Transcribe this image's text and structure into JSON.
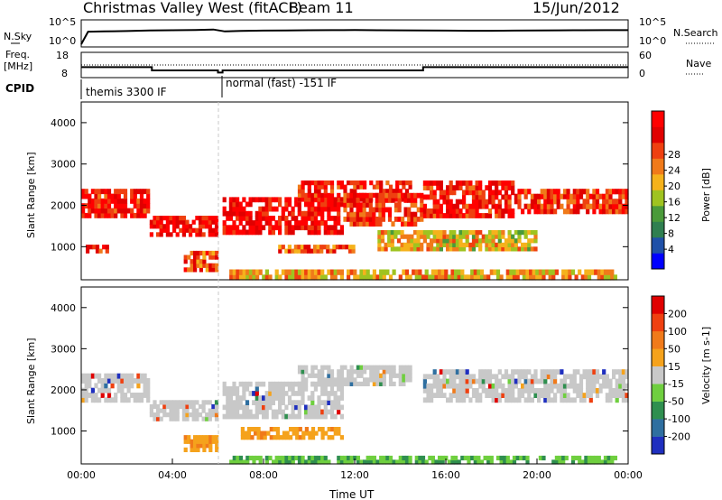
{
  "header": {
    "title": "Christmas Valley West (fitACF)",
    "beam": "Beam 11",
    "date": "15/Jun/2012"
  },
  "left_labels": {
    "nsky": "N.Sky",
    "freq": "Freq.",
    "freq_unit": "[MHz]",
    "cpid": "CPID"
  },
  "right_labels": {
    "nsearch": "N.Search",
    "nave": "Nave"
  },
  "cpid_labels": [
    "themis 3300 IF",
    "normal (fast) -151 IF"
  ],
  "colors": {
    "trace": "#000000",
    "gap_line": "#c8c8c8",
    "ground_scatter": "#b8b8b8"
  },
  "chart_data": [
    {
      "type": "line",
      "panel": "noise",
      "ylabel_left": "N.Sky",
      "ylabel_right": "N.Search",
      "left_ticks": [
        "10^5",
        "10^0"
      ],
      "right_ticks": [
        "10^5",
        "10^0"
      ],
      "yscale": "log",
      "series": [
        {
          "name": "N.Sky",
          "x": [
            0.0,
            0.3,
            1,
            2,
            3,
            4,
            5,
            5.8,
            6.3,
            7,
            8,
            9,
            10,
            11,
            12,
            13,
            14,
            15,
            16,
            17,
            18,
            19,
            20,
            21,
            22,
            23,
            24
          ],
          "y": [
            1,
            800,
            900,
            1100,
            1500,
            1700,
            2000,
            2500,
            900,
            1200,
            1400,
            1500,
            1700,
            1800,
            1900,
            1700,
            1600,
            1500,
            1400,
            1300,
            1300,
            1400,
            1500,
            1600,
            1700,
            1800,
            1800
          ]
        }
      ]
    },
    {
      "type": "line",
      "panel": "frequency",
      "ylabel_left": "Freq. [MHz]",
      "ylabel_right": "Nave",
      "left_ticks": [
        "18",
        "8"
      ],
      "right_ticks": [
        "60",
        "0"
      ],
      "series": [
        {
          "name": "Freq.",
          "x": [
            0,
            3.1,
            3.1,
            6.0,
            6.0,
            6.2,
            6.2,
            15.0,
            15.0,
            24
          ],
          "y": [
            12,
            12,
            10.5,
            10.5,
            9.5,
            9.5,
            10.5,
            10.5,
            12,
            12
          ]
        },
        {
          "name": "Nave",
          "x": [
            0,
            24
          ],
          "y": [
            30,
            30
          ]
        }
      ]
    },
    {
      "type": "heatmap",
      "panel": "power",
      "title": "",
      "xlabel": "",
      "ylabel": "Slant Range [km]",
      "colorbar_label": "Power [dB]",
      "ylim": [
        200,
        4500
      ],
      "y_ticks": [
        "1000",
        "2000",
        "3000",
        "4000"
      ],
      "colorbar_ticks": [
        "4",
        "8",
        "12",
        "16",
        "20",
        "24",
        "28"
      ],
      "colorbar_colors": [
        "#0000ff",
        "#1f50a8",
        "#2f7f50",
        "#4a9a3a",
        "#9fc320",
        "#f5b21c",
        "#f07a1a",
        "#ef4010",
        "#e00000",
        "#ff0000"
      ],
      "echo_bands": [
        {
          "x0": 0.0,
          "x1": 3.0,
          "r0": 1700,
          "r1": 2400,
          "level": 0.85
        },
        {
          "x0": 0.2,
          "x1": 1.2,
          "r0": 850,
          "r1": 1050,
          "level": 0.8
        },
        {
          "x0": 3.0,
          "x1": 6.0,
          "r0": 1250,
          "r1": 1750,
          "level": 0.9
        },
        {
          "x0": 4.5,
          "x1": 6.0,
          "r0": 400,
          "r1": 900,
          "level": 0.75
        },
        {
          "x0": 6.2,
          "x1": 11.5,
          "r0": 1300,
          "r1": 2200,
          "level": 0.9
        },
        {
          "x0": 9.5,
          "x1": 14.5,
          "r0": 2100,
          "r1": 2600,
          "level": 0.85
        },
        {
          "x0": 11.5,
          "x1": 15.0,
          "r0": 1500,
          "r1": 2300,
          "level": 0.8
        },
        {
          "x0": 8.5,
          "x1": 12.0,
          "r0": 850,
          "r1": 1050,
          "level": 0.7
        },
        {
          "x0": 15.0,
          "x1": 19.0,
          "r0": 1700,
          "r1": 2600,
          "level": 0.85
        },
        {
          "x0": 19.0,
          "x1": 24.0,
          "r0": 1800,
          "r1": 2400,
          "level": 0.8
        },
        {
          "x0": 13.0,
          "x1": 20.0,
          "r0": 900,
          "r1": 1400,
          "level": 0.55
        },
        {
          "x0": 6.5,
          "x1": 23.5,
          "r0": 200,
          "r1": 450,
          "level": 0.6
        }
      ]
    },
    {
      "type": "heatmap",
      "panel": "velocity",
      "title": "",
      "xlabel": "Time UT",
      "ylabel": "Slant Range [km]",
      "colorbar_label": "Velocity [m s-1]",
      "ylim": [
        200,
        4500
      ],
      "xlim": [
        0,
        24
      ],
      "x_ticks": [
        "00:00",
        "04:00",
        "08:00",
        "12:00",
        "16:00",
        "20:00",
        "00:00"
      ],
      "y_ticks": [
        "1000",
        "2000",
        "3000",
        "4000"
      ],
      "colorbar_ticks": [
        "200",
        "100",
        "50",
        "15",
        "-15",
        "-50",
        "-100",
        "-200"
      ],
      "colorbar_colors": [
        "#1f2fbf",
        "#2f6fa0",
        "#2f8f4f",
        "#6fcf3f",
        "#c8c8c8",
        "#f5a21c",
        "#f07a1a",
        "#ef4010",
        "#e00000"
      ],
      "echo_bands": [
        {
          "x0": 0.0,
          "x1": 3.0,
          "r0": 1700,
          "r1": 2400,
          "level": 0.5
        },
        {
          "x0": 3.0,
          "x1": 6.0,
          "r0": 1250,
          "r1": 1750,
          "level": 0.5
        },
        {
          "x0": 6.2,
          "x1": 11.5,
          "r0": 1300,
          "r1": 2200,
          "level": 0.5
        },
        {
          "x0": 9.5,
          "x1": 14.5,
          "r0": 2100,
          "r1": 2600,
          "level": 0.5
        },
        {
          "x0": 15.0,
          "x1": 24.0,
          "r0": 1700,
          "r1": 2500,
          "level": 0.5
        },
        {
          "x0": 7.0,
          "x1": 11.5,
          "r0": 800,
          "r1": 1100,
          "level": 0.35
        },
        {
          "x0": 4.5,
          "x1": 6.0,
          "r0": 500,
          "r1": 900,
          "level": 0.3
        },
        {
          "x0": 6.5,
          "x1": 23.5,
          "r0": 200,
          "r1": 400,
          "level": 0.8
        }
      ]
    }
  ]
}
